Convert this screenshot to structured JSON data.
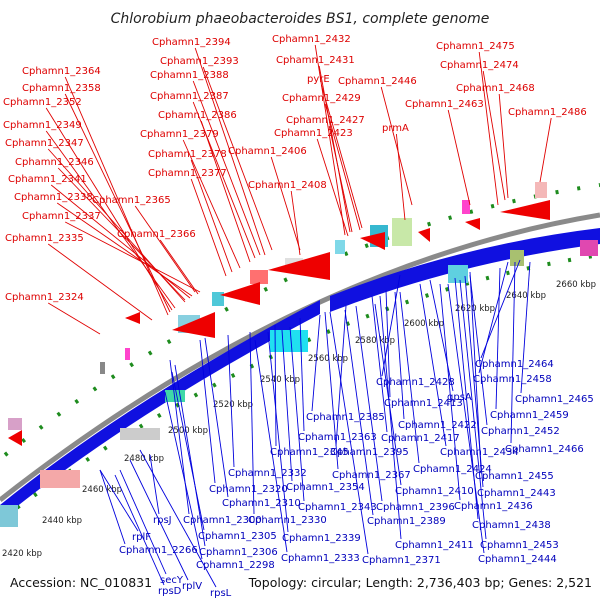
{
  "title": "Chlorobium phaeobacteroides BS1, complete genome",
  "footer": {
    "accession": "Accession: NC_010831",
    "summary": "Topology: circular; Length: 2,736,403 bp; Genes: 2,521"
  },
  "colors": {
    "forward": "#e00000",
    "reverse": "#0000dd",
    "backbone": "#888888",
    "gc_dots": "#1e8c1e"
  },
  "ticks": [
    "2420 kbp",
    "2440 kbp",
    "2460 kbp",
    "2480 kbp",
    "2500 kbp",
    "2520 kbp",
    "2540 kbp",
    "2560 kbp",
    "2580 kbp",
    "2600 kbp",
    "2620 kbp",
    "2640 kbp",
    "2660 kbp"
  ],
  "forward_labels": [
    "Cphamn1_2394",
    "Cphamn1_2432",
    "Cphamn1_2475",
    "Cphamn1_2393",
    "Cphamn1_2431",
    "Cphamn1_2474",
    "Cphamn1_2364",
    "Cphamn1_2388",
    "pyrE",
    "Cphamn1_2446",
    "Cphamn1_2358",
    "Cphamn1_2468",
    "Cphamn1_2352",
    "Cphamn1_2387",
    "Cphamn1_2429",
    "Cphamn1_2463",
    "Cphamn1_2486",
    "Cphamn1_2386",
    "Cphamn1_2427",
    "Cphamn1_2349",
    "prmA",
    "Cphamn1_2379",
    "Cphamn1_2423",
    "Cphamn1_2347",
    "Cphamn1_2406",
    "Cphamn1_2346",
    "Cphamn1_2378",
    "Cphamn1_2377",
    "Cphamn1_2341",
    "Cphamn1_2408",
    "Cphamn1_2338",
    "Cphamn1_2365",
    "Cphamn1_2337",
    "Cphamn1_2335",
    "Cphamn1_2366",
    "Cphamn1_2324"
  ],
  "reverse_labels": [
    "Cphamn1_2464",
    "Cphamn1_2458",
    "Cphamn1_2428",
    "gpsA",
    "Cphamn1_2465",
    "Cphamn1_2413",
    "Cphamn1_2385",
    "Cphamn1_2459",
    "Cphamn1_2422",
    "Cphamn1_2452",
    "Cphamn1_2363",
    "Cphamn1_2417",
    "Cphamn1_2345",
    "Cphamn1_2395",
    "Cphamn1_2434",
    "Cphamn1_2466",
    "Cphamn1_2367",
    "Cphamn1_2424",
    "Cphamn1_2455",
    "Cphamn1_2332",
    "Cphamn1_2354",
    "Cphamn1_2410",
    "Cphamn1_2443",
    "Cphamn1_2320",
    "Cphamn1_2310",
    "Cphamn1_2343",
    "Cphamn1_2396",
    "Cphamn1_2436",
    "Cphamn1_2330",
    "Cphamn1_2389",
    "Cphamn1_2438",
    "Cphamn1_2300",
    "rplF",
    "rpsJ",
    "Cphamn1_2305",
    "Cphamn1_2339",
    "Cphamn1_2266",
    "Cphamn1_2306",
    "Cphamn1_2411",
    "Cphamn1_2453",
    "Cphamn1_2298",
    "Cphamn1_2333",
    "Cphamn1_2371",
    "Cphamn1_2444",
    "secY",
    "rplV",
    "rpsD",
    "rpsL"
  ]
}
